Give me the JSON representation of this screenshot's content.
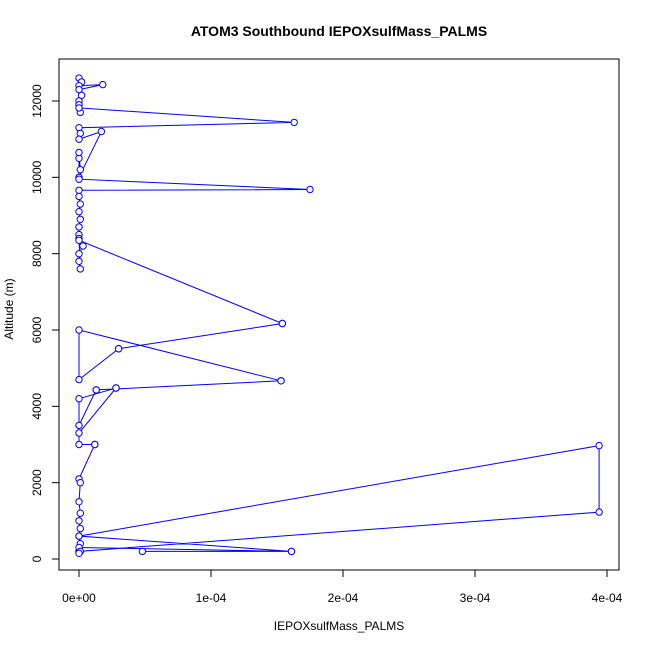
{
  "chart_data": {
    "type": "line",
    "title": "ATOM3 Southbound IEPOXsulfMass_PALMS",
    "xlabel": "IEPOXsulfMass_PALMS",
    "ylabel": "Altitude (m)",
    "xlim": [
      0,
      0.0004
    ],
    "ylim": [
      0,
      12600
    ],
    "x_ticks": [
      0,
      0.0001,
      0.0002,
      0.0003,
      0.0004
    ],
    "x_tick_labels": [
      "0e+00",
      "1e-04",
      "2e-04",
      "3e-04",
      "4e-04"
    ],
    "y_ticks": [
      0,
      2000,
      4000,
      6000,
      8000,
      10000,
      12000
    ],
    "y_tick_labels": [
      "0",
      "2000",
      "4000",
      "6000",
      "8000",
      "10000",
      "12000"
    ],
    "series_color": "#0000ff",
    "marker": "open-circle",
    "grid": false,
    "legend": "none",
    "series": [
      {
        "x": [
          0,
          2e-06,
          0,
          1.8e-05,
          0,
          2e-06,
          0,
          0,
          1e-06,
          0,
          0.000163,
          0,
          1e-06,
          0,
          1.7e-05,
          0,
          0,
          1e-06,
          0,
          0,
          0.000175,
          0,
          0,
          1e-06,
          0,
          1e-06,
          0,
          0,
          0,
          3e-06,
          0,
          0,
          1e-06,
          0,
          0.000154,
          0.000154,
          3e-05,
          3e-05,
          0,
          0,
          0.000153,
          0.000153,
          1.3e-05,
          1.3e-05,
          0,
          0,
          2.8e-05,
          2.8e-05,
          0,
          0,
          1.2e-05,
          1.2e-05,
          0,
          1e-06,
          0,
          1e-06,
          0,
          1e-06,
          0,
          0.000394,
          0.000394,
          0,
          1e-06,
          0,
          0.000161,
          4.8e-05,
          0.000161,
          0,
          1e-06,
          0
        ],
        "y": [
          12600,
          12500,
          12400,
          12430,
          12300,
          12150,
          12000,
          11900,
          11700,
          11820,
          11440,
          11300,
          11150,
          11000,
          11200,
          10000,
          10500,
          10200,
          10650,
          9950,
          9680,
          9660,
          9500,
          9300,
          9100,
          8900,
          8700,
          8500,
          8400,
          8200,
          8000,
          7800,
          7600,
          8350,
          6170,
          6170,
          5510,
          5510,
          4700,
          6000,
          4670,
          4670,
          4430,
          4430,
          3500,
          4200,
          4480,
          4480,
          3300,
          3000,
          3000,
          3000,
          2100,
          2000,
          1500,
          1200,
          1000,
          800,
          600,
          2970,
          1230,
          200,
          400,
          600,
          200,
          200,
          200,
          300,
          200,
          150
        ]
      }
    ]
  }
}
